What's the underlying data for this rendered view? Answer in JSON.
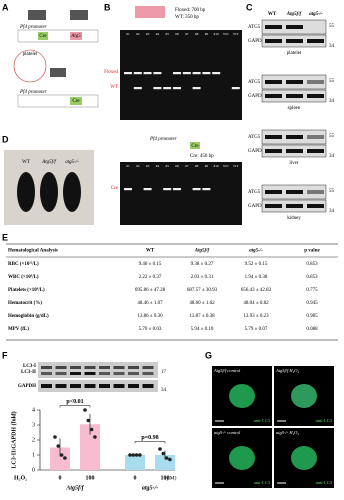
{
  "panels": [
    "A",
    "B",
    "C",
    "D",
    "E",
    "F",
    "G"
  ],
  "a": {
    "promoter": "Pf4 promoter",
    "cre": "Cre",
    "gene": "Atg5",
    "cell": "platelet"
  },
  "b": {
    "sizes": [
      "Floxed: 700 bp",
      "WT: 350 bp"
    ],
    "bands": [
      "Floxed",
      "WT"
    ],
    "lanes": [
      "#1",
      "#2",
      "#3",
      "#4",
      "#5",
      "#6",
      "#7",
      "#8",
      "#9",
      "#10",
      "N/C",
      "WT"
    ]
  },
  "c": {
    "genotypes": [
      "WT",
      "Atg5f/f",
      "atg5-/-"
    ],
    "proteins": [
      "ATG5",
      "GAPDH"
    ],
    "tissues": [
      "platelet",
      "spleen",
      "liver",
      "kidney"
    ],
    "markers": [
      "55",
      "34"
    ]
  },
  "d": {
    "mice": [
      "WT",
      "Atg5f/f",
      "atg5-/-"
    ],
    "size": "Cre: 450 bp",
    "promoter": "Pf4 promoter",
    "cre": "Cre",
    "band": "Cre",
    "lanes": [
      "#1",
      "#2",
      "#3",
      "#4",
      "#5",
      "#6",
      "#7",
      "#8",
      "#9",
      "#10",
      "N/C",
      "WT"
    ]
  },
  "table": {
    "header": [
      "Hematological Analysis",
      "WT",
      "Atg5f/f",
      "atg5-/-",
      "p value"
    ],
    "rows": [
      [
        "RBC (×10¹²/L)",
        "9.40 ± 0.15",
        "9.38 ± 0.27",
        "9.52 ± 0.15",
        "0.853"
      ],
      [
        "WBC (×10⁹/L)",
        "2.22 ± 0.37",
        "2.03 ± 0.31",
        "1.94 ± 0.38",
        "0.853"
      ],
      [
        "Platelets (×10⁹/L)",
        "695.86 ± 47.28",
        "687.57 ± 30.93",
        "656.43 ± 42.83",
        "0.775"
      ],
      [
        "Hematocrit (%)",
        "48.46 ± 1.07",
        "48.60 ± 1.62",
        "48.04 ± 0.82",
        "0.945"
      ],
      [
        "Hemoglobin (g/dL)",
        "13.86 ± 0.30",
        "13.87 ± 0.38",
        "13.93 ± 0.23",
        "0.985"
      ],
      [
        "MPV (fL)",
        "5.70 ± 0.03",
        "5.94 ± 0.10",
        "5.79 ± 0.07",
        "0.088"
      ]
    ]
  },
  "f_blot": {
    "bands": [
      "LC3-I",
      "LC3-II",
      "GAPDH"
    ],
    "markers": [
      "17",
      "34"
    ]
  },
  "chart_data": {
    "type": "bar",
    "y_label": "LC3-II:GAPDH (fold)",
    "x_label": "H₂O₂",
    "unit": "(μM)",
    "categories": [
      "0",
      "100"
    ],
    "ylim": [
      0,
      4
    ],
    "yticks": [
      0,
      1,
      2,
      3,
      4
    ],
    "series": [
      {
        "name": "Atg5f/f",
        "color": "#f7bcd0",
        "values": [
          1.5,
          3.05
        ],
        "errors": [
          0.6,
          0.7
        ],
        "points": [
          [
            2.2,
            1.6,
            1.0,
            0.8
          ],
          [
            4.0,
            3.3,
            2.7,
            2.2
          ]
        ]
      },
      {
        "name": "atg5-/-",
        "color": "#a9dcef",
        "values": [
          1.0,
          1.0
        ],
        "errors": [
          0,
          0.3
        ],
        "points": [
          [
            1.0,
            1.0,
            1.0,
            1.0
          ],
          [
            1.4,
            1.1,
            0.8,
            0.7
          ]
        ]
      }
    ],
    "annotations": [
      "p<0.01",
      "p=0.98"
    ]
  },
  "g": {
    "titles": [
      "Atg5f/f control",
      "Atg5f/f H₂O₂",
      "atg5-/- control",
      "atg5-/- H₂O₂"
    ],
    "stain": "anti-LC3"
  }
}
